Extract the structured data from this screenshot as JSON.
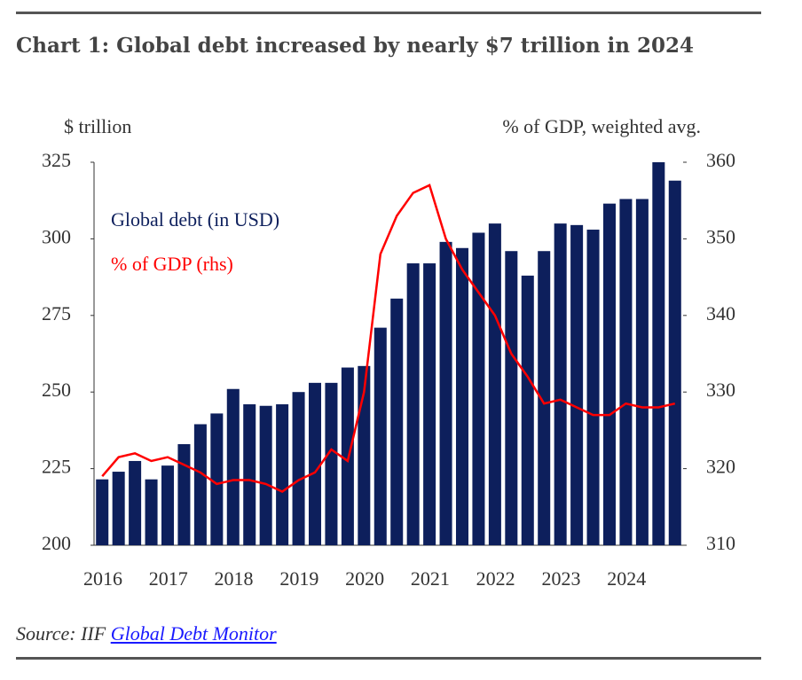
{
  "chart_data": {
    "type": "bar",
    "title": "Chart 1: Global debt increased by nearly $7 trillion in 2024",
    "y_label": "$ trillion",
    "y2_label": "% of GDP, weighted avg.",
    "source_prefix": "Source: IIF",
    "source_link": "Global Debt Monitor",
    "categories": [
      "2016",
      null,
      null,
      null,
      "2017",
      null,
      null,
      null,
      "2018",
      null,
      null,
      null,
      "2019",
      null,
      null,
      null,
      "2020",
      null,
      null,
      null,
      "2021",
      null,
      null,
      null,
      "2022",
      null,
      null,
      null,
      "2023",
      null,
      null,
      null,
      "2024",
      null,
      null,
      null
    ],
    "series": [
      {
        "name": "Global debt (in USD)",
        "color": "#0d1f5c",
        "values": [
          221.5,
          224,
          227.5,
          221.5,
          226,
          233,
          239.5,
          243,
          251,
          246,
          245.5,
          246,
          250,
          253,
          253,
          258,
          258.5,
          271,
          280.5,
          292,
          292,
          299,
          297,
          302,
          305,
          296,
          288,
          296,
          305,
          304.5,
          303,
          311.5,
          313,
          313,
          325,
          319
        ]
      },
      {
        "name": "% of GDP (rhs)",
        "color": "#ff0000",
        "axis": "y2",
        "values": [
          319,
          321.5,
          322,
          321,
          321.5,
          320.5,
          319.5,
          318,
          318.5,
          318.5,
          318,
          317,
          318.5,
          319.5,
          322.5,
          321,
          330,
          348,
          353,
          356,
          357,
          350,
          346,
          343,
          340,
          335,
          332,
          328.5,
          329,
          328,
          327,
          327,
          328.5,
          328,
          328,
          328.5
        ]
      }
    ],
    "ylim": [
      200,
      325
    ],
    "yticks": [
      200,
      225,
      250,
      275,
      300,
      325
    ],
    "y2lim": [
      310,
      360
    ],
    "y2ticks": [
      310,
      320,
      330,
      340,
      350,
      360
    ]
  }
}
